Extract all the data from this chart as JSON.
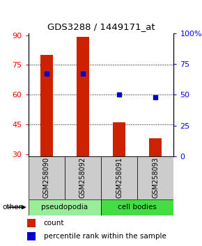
{
  "title": "GDS3288 / 1449171_at",
  "samples": [
    "GSM258090",
    "GSM258092",
    "GSM258091",
    "GSM258093"
  ],
  "bar_bottoms": [
    29,
    29,
    29,
    29
  ],
  "bar_tops": [
    80,
    89,
    46,
    38
  ],
  "bar_color": "#cc2200",
  "blue_markers": [
    67,
    67,
    50,
    48
  ],
  "blue_color": "#0000cc",
  "ylim_left": [
    29,
    91
  ],
  "ylim_right": [
    0,
    100
  ],
  "yticks_left": [
    30,
    45,
    60,
    75,
    90
  ],
  "yticks_right": [
    0,
    25,
    50,
    75,
    100
  ],
  "ytick_labels_right": [
    "0",
    "25",
    "50",
    "75",
    "100%"
  ],
  "pseudopodia_color": "#99ee99",
  "cell_bodies_color": "#44dd44",
  "sample_bg_color": "#cccccc",
  "other_label": "other",
  "legend_count_color": "#cc2200",
  "legend_pct_color": "#0000cc",
  "bar_width": 0.35
}
